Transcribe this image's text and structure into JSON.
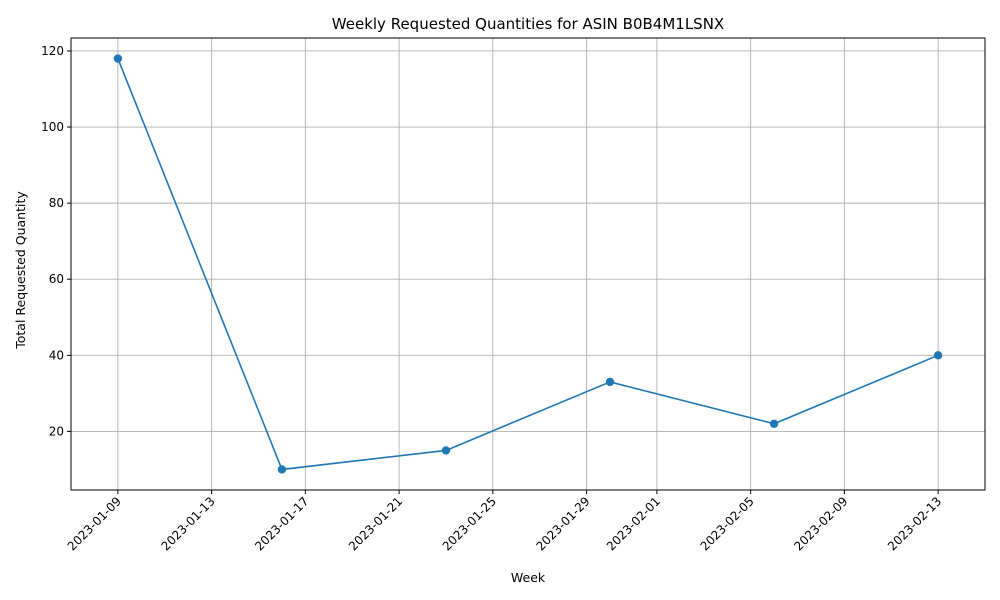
{
  "chart_data": {
    "type": "line",
    "title": "Weekly Requested Quantities for ASIN B0B4M1LSNX",
    "xlabel": "Week",
    "ylabel": "Total Requested Quantity",
    "x": [
      "2023-01-09",
      "2023-01-16",
      "2023-01-23",
      "2023-01-30",
      "2023-02-06",
      "2023-02-13"
    ],
    "series": [
      {
        "values": [
          118,
          10,
          15,
          33,
          22,
          40
        ]
      }
    ],
    "x_ticks": [
      "2023-01-09",
      "2023-01-13",
      "2023-01-17",
      "2023-01-21",
      "2023-01-25",
      "2023-01-29",
      "2023-02-01",
      "2023-02-05",
      "2023-02-09",
      "2023-02-13"
    ],
    "y_ticks": [
      20,
      40,
      60,
      80,
      100,
      120
    ],
    "xlim": [
      "2023-01-07",
      "2023-02-15"
    ],
    "ylim": [
      4.6,
      123.4
    ],
    "grid": true,
    "markers": "circle",
    "line_color": "#1f77b4",
    "x_tick_rotation_deg": 45
  }
}
